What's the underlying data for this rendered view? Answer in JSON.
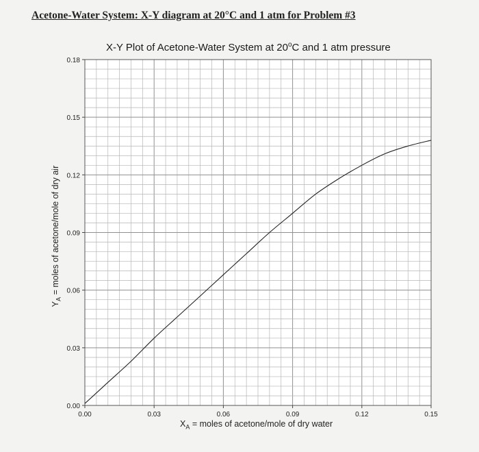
{
  "heading": "Acetone-Water System: X-Y diagram at 20°C and 1 atm for Problem #3",
  "chart_title_pre": "X-Y Plot of Acetone-Water System at 20",
  "chart_title_deg": "o",
  "chart_title_post": "C and 1 atm pressure",
  "xlabel_sym": "X",
  "xlabel_sub": "A",
  "xlabel_text": " = moles of acetone/mole of dry water",
  "ylabel_sym": "Y",
  "ylabel_sub": "A",
  "ylabel_text": " = moles of acetone/mole of dry air",
  "chart_data": {
    "type": "line",
    "title": "X-Y Plot of Acetone-Water System at 20°C and 1 atm pressure",
    "xlabel": "XA = moles of acetone/mole of dry water",
    "ylabel": "YA = moles of acetone/mole of dry air",
    "xlim": [
      0,
      0.15
    ],
    "ylim": [
      0,
      0.18
    ],
    "xticks": [
      "0.00",
      "0.03",
      "0.06",
      "0.09",
      "0.12",
      "0.15"
    ],
    "yticks": [
      "0.00",
      "0.03",
      "0.06",
      "0.09",
      "0.12",
      "0.15",
      "0.18"
    ],
    "grid": true,
    "series": [
      {
        "x": [
          0.0,
          0.01,
          0.02,
          0.03,
          0.04,
          0.05,
          0.06,
          0.07,
          0.08,
          0.09,
          0.1,
          0.11,
          0.12,
          0.13,
          0.14,
          0.15
        ],
        "y": [
          0.001,
          0.012,
          0.023,
          0.035,
          0.046,
          0.057,
          0.068,
          0.079,
          0.09,
          0.1,
          0.11,
          0.118,
          0.125,
          0.131,
          0.135,
          0.138
        ]
      }
    ],
    "line_color": "#222222",
    "grid_color": "#b5b5b5"
  }
}
